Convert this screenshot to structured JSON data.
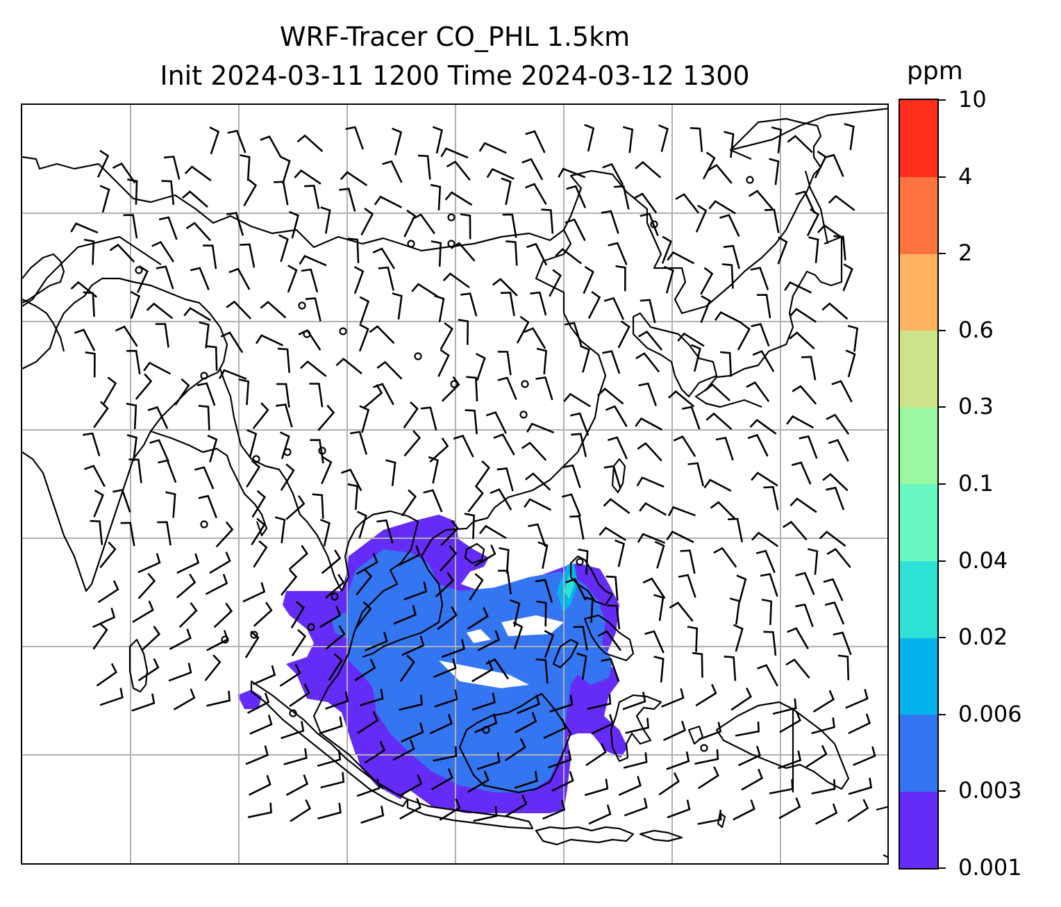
{
  "title": {
    "line1": "WRF-Tracer CO_PHL 1.5km",
    "line2": "Init 2024-03-11 1200 Time 2024-03-12 1300"
  },
  "colorbar": {
    "unit": "ppm",
    "levels": [
      "0.001",
      "0.003",
      "0.006",
      "0.02",
      "0.04",
      "0.1",
      "0.3",
      "0.6",
      "2",
      "4",
      "10"
    ],
    "colors": [
      "#652bf7",
      "#3476f2",
      "#02b4eb",
      "#2de1d5",
      "#68f9c2",
      "#9af8a0",
      "#cde38a",
      "#ffb162",
      "#ff7341",
      "#ff2f1a"
    ]
  },
  "map": {
    "plume_colors": {
      "low": "#652bf7",
      "mid": "#3476f2",
      "high": "#02b4eb",
      "peak": "#2de1d5"
    },
    "gridline_color": "#b0b0b0",
    "coastline_color": "#000000",
    "grid": "on"
  }
}
